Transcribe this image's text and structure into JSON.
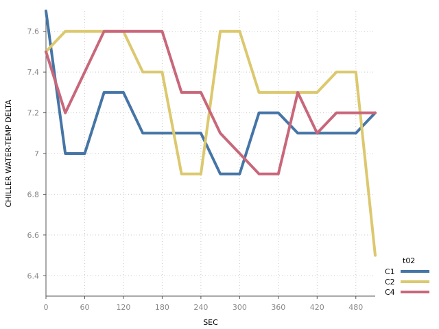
{
  "chart_data": {
    "type": "line",
    "title": "",
    "xlabel": "SEC",
    "ylabel": "CHILLER WATER-TEMP DELTA",
    "xlim": [
      0,
      510
    ],
    "ylim": [
      6.3,
      7.7
    ],
    "x_ticks": [
      0,
      60,
      120,
      180,
      240,
      300,
      360,
      420,
      480
    ],
    "y_ticks": [
      6.4,
      6.6,
      6.8,
      7,
      7.2,
      7.4,
      7.6
    ],
    "y_tick_labels": [
      "6.4",
      "6.6",
      "6.8",
      "7",
      "7.2",
      "7.4",
      "7.6"
    ],
    "grid": true,
    "legend_title": "t02",
    "legend_position": "bottom-right",
    "x": [
      0,
      30,
      60,
      90,
      120,
      150,
      180,
      210,
      240,
      270,
      300,
      330,
      360,
      390,
      420,
      450,
      480,
      510
    ],
    "series": [
      {
        "name": "C1",
        "color": "#4575a6",
        "values": [
          7.7,
          7.0,
          7.0,
          7.3,
          7.3,
          7.1,
          7.1,
          7.1,
          7.1,
          6.9,
          6.9,
          7.2,
          7.2,
          7.1,
          7.1,
          7.1,
          7.1,
          7.2
        ]
      },
      {
        "name": "C2",
        "color": "#dcc86e",
        "values": [
          7.5,
          7.6,
          7.6,
          7.6,
          7.6,
          7.4,
          7.4,
          6.9,
          6.9,
          7.6,
          7.6,
          7.3,
          7.3,
          7.3,
          7.3,
          7.4,
          7.4,
          6.5
        ]
      },
      {
        "name": "C4",
        "color": "#c9677a",
        "values": [
          7.5,
          7.2,
          7.4,
          7.6,
          7.6,
          7.6,
          7.6,
          7.3,
          7.3,
          7.1,
          7.0,
          6.9,
          6.9,
          7.3,
          7.1,
          7.2,
          7.2,
          7.2
        ]
      }
    ]
  }
}
